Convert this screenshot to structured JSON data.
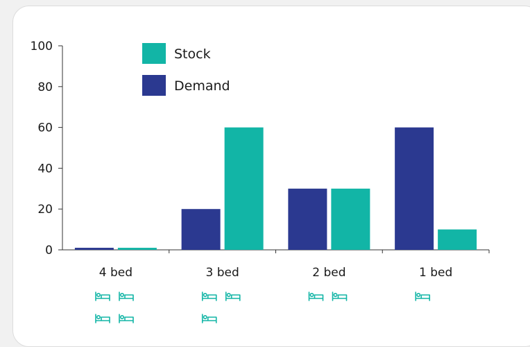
{
  "chart_data": {
    "type": "bar",
    "title": "",
    "xlabel": "",
    "ylabel": "",
    "categories": [
      "4 bed",
      "3 bed",
      "2 bed",
      "1 bed"
    ],
    "category_bed_icons": [
      4,
      3,
      2,
      1
    ],
    "series": [
      {
        "name": "Demand",
        "color": "#2b3990",
        "values": [
          1,
          20,
          30,
          60
        ]
      },
      {
        "name": "Stock",
        "color": "#12b5a6",
        "values": [
          1,
          60,
          30,
          10
        ]
      }
    ],
    "ylim": [
      0,
      100
    ],
    "yticks": [
      "0",
      "20",
      "40",
      "60",
      "80",
      "100"
    ],
    "legend": {
      "placement": "top-left",
      "entries": [
        {
          "name": "Stock",
          "color": "#12b5a6"
        },
        {
          "name": "Demand",
          "color": "#2b3990"
        }
      ]
    },
    "grid": false,
    "icon": "bed-icon",
    "icon_color": "#12b5a6",
    "axis_color": "#333333"
  }
}
